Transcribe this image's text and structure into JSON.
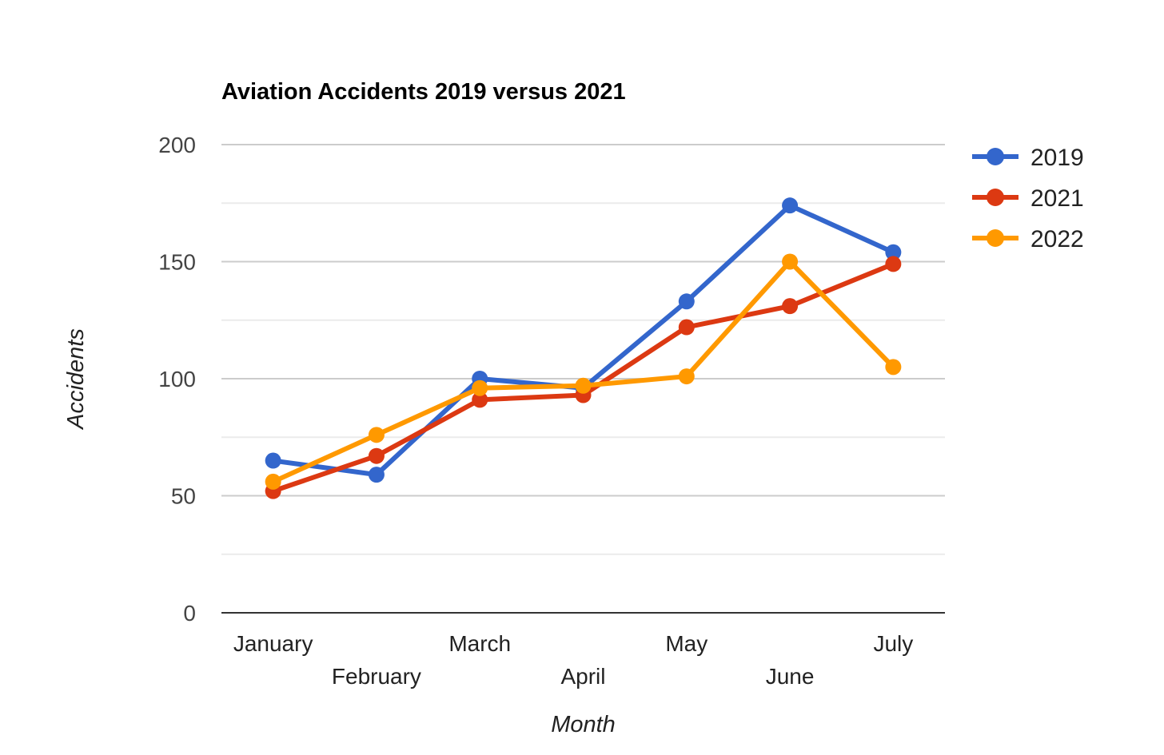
{
  "chart_data": {
    "type": "line",
    "title": "Aviation Accidents 2019 versus 2021",
    "xlabel": "Month",
    "ylabel": "Accidents",
    "categories": [
      "January",
      "February",
      "March",
      "April",
      "May",
      "June",
      "July"
    ],
    "ylim": [
      0,
      200
    ],
    "yticks": [
      "0",
      "50",
      "100",
      "150",
      "200"
    ],
    "grid": true,
    "legend_position": "right",
    "series": [
      {
        "name": "2019",
        "color": "#3366cc",
        "values": [
          65,
          59,
          100,
          96,
          133,
          174,
          154
        ]
      },
      {
        "name": "2021",
        "color": "#dc3912",
        "values": [
          52,
          67,
          91,
          93,
          122,
          131,
          149
        ]
      },
      {
        "name": "2022",
        "color": "#ff9900",
        "values": [
          56,
          76,
          96,
          97,
          101,
          150,
          105
        ]
      }
    ]
  }
}
